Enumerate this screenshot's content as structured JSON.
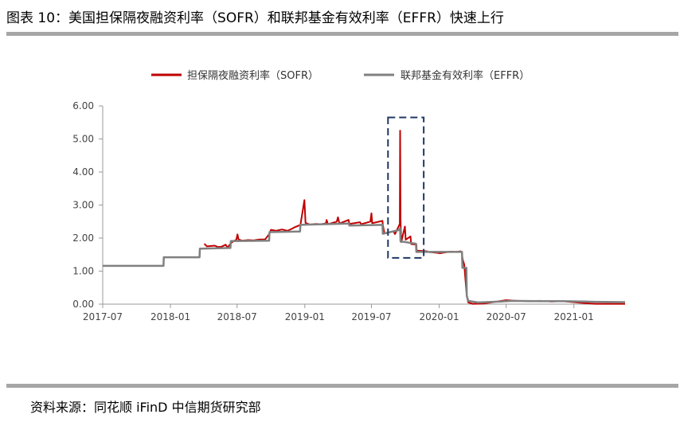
{
  "page": {
    "title": "图表 10：美国担保隔夜融资利率（SOFR）和联邦基金有效利率（EFFR）快速上行",
    "source": "资料来源：同花顺 iFinD 中信期货研究部"
  },
  "chart_data": {
    "type": "line",
    "title": "图表 10：美国担保隔夜融资利率（SOFR）和联邦基金有效利率（EFFR）快速上行",
    "xlabel": "",
    "ylabel": "",
    "x_domain": [
      "2017-07",
      "2021-05"
    ],
    "ylim": [
      0,
      6
    ],
    "y_ticks": [
      0,
      1,
      2,
      3,
      4,
      5,
      6
    ],
    "y_tick_labels": [
      "0.00",
      "1.00",
      "2.00",
      "3.00",
      "4.00",
      "5.00",
      "6.00"
    ],
    "x_ticks": [
      "2017-07",
      "2018-01",
      "2018-07",
      "2019-01",
      "2019-07",
      "2020-01",
      "2020-07",
      "2021-01"
    ],
    "grid": false,
    "legend": "top",
    "highlight_box": {
      "x_range": [
        "2019-08-15",
        "2019-11-20"
      ],
      "y_range": [
        1.4,
        5.65
      ],
      "style": "dashed",
      "color": "#1f3864"
    },
    "series": [
      {
        "name": "担保隔夜融资利率（SOFR）",
        "color": "#c00000",
        "points": [
          [
            "2018-04-03",
            1.83
          ],
          [
            "2018-04-10",
            1.75
          ],
          [
            "2018-04-20",
            1.76
          ],
          [
            "2018-05-01",
            1.77
          ],
          [
            "2018-05-10",
            1.73
          ],
          [
            "2018-05-20",
            1.74
          ],
          [
            "2018-05-31",
            1.8
          ],
          [
            "2018-06-05",
            1.71
          ],
          [
            "2018-06-14",
            1.84
          ],
          [
            "2018-06-20",
            1.9
          ],
          [
            "2018-06-29",
            1.95
          ],
          [
            "2018-07-02",
            2.11
          ],
          [
            "2018-07-05",
            1.96
          ],
          [
            "2018-07-15",
            1.92
          ],
          [
            "2018-07-31",
            1.94
          ],
          [
            "2018-08-15",
            1.93
          ],
          [
            "2018-08-31",
            1.96
          ],
          [
            "2018-09-15",
            1.96
          ],
          [
            "2018-09-27",
            2.13
          ],
          [
            "2018-10-01",
            2.25
          ],
          [
            "2018-10-15",
            2.22
          ],
          [
            "2018-10-31",
            2.26
          ],
          [
            "2018-11-15",
            2.22
          ],
          [
            "2018-11-30",
            2.3
          ],
          [
            "2018-12-03",
            2.32
          ],
          [
            "2018-12-20",
            2.4
          ],
          [
            "2018-12-31",
            3.15
          ],
          [
            "2019-01-03",
            2.46
          ],
          [
            "2019-01-15",
            2.41
          ],
          [
            "2019-01-31",
            2.43
          ],
          [
            "2019-02-15",
            2.42
          ],
          [
            "2019-02-28",
            2.45
          ],
          [
            "2019-03-01",
            2.55
          ],
          [
            "2019-03-05",
            2.42
          ],
          [
            "2019-03-29",
            2.5
          ],
          [
            "2019-04-01",
            2.63
          ],
          [
            "2019-04-05",
            2.44
          ],
          [
            "2019-04-30",
            2.55
          ],
          [
            "2019-05-02",
            2.43
          ],
          [
            "2019-05-31",
            2.48
          ],
          [
            "2019-06-03",
            2.42
          ],
          [
            "2019-06-28",
            2.5
          ],
          [
            "2019-07-01",
            2.75
          ],
          [
            "2019-07-03",
            2.45
          ],
          [
            "2019-07-31",
            2.52
          ],
          [
            "2019-08-01",
            2.4
          ],
          [
            "2019-08-05",
            2.14
          ],
          [
            "2019-08-30",
            2.2
          ],
          [
            "2019-09-03",
            2.12
          ],
          [
            "2019-09-16",
            2.43
          ],
          [
            "2019-09-17",
            5.25
          ],
          [
            "2019-09-18",
            2.55
          ],
          [
            "2019-09-20",
            1.88
          ],
          [
            "2019-09-30",
            2.35
          ],
          [
            "2019-10-02",
            1.95
          ],
          [
            "2019-10-15",
            2.05
          ],
          [
            "2019-10-17",
            1.82
          ],
          [
            "2019-10-31",
            1.8
          ],
          [
            "2019-11-01",
            1.62
          ],
          [
            "2019-11-29",
            1.6
          ],
          [
            "2019-12-02",
            1.58
          ],
          [
            "2019-12-31",
            1.55
          ],
          [
            "2020-01-02",
            1.54
          ],
          [
            "2020-01-31",
            1.59
          ],
          [
            "2020-02-15",
            1.58
          ],
          [
            "2020-02-28",
            1.6
          ],
          [
            "2020-03-02",
            1.58
          ],
          [
            "2020-03-05",
            1.35
          ],
          [
            "2020-03-09",
            1.2
          ],
          [
            "2020-03-16",
            0.25
          ],
          [
            "2020-03-20",
            0.05
          ],
          [
            "2020-04-01",
            0.01
          ],
          [
            "2020-05-01",
            0.02
          ],
          [
            "2020-06-01",
            0.07
          ],
          [
            "2020-07-01",
            0.12
          ],
          [
            "2020-08-01",
            0.1
          ],
          [
            "2020-09-01",
            0.09
          ],
          [
            "2020-10-01",
            0.1
          ],
          [
            "2020-11-01",
            0.08
          ],
          [
            "2020-12-01",
            0.09
          ],
          [
            "2021-01-01",
            0.06
          ],
          [
            "2021-02-01",
            0.03
          ],
          [
            "2021-03-01",
            0.01
          ],
          [
            "2021-04-01",
            0.01
          ],
          [
            "2021-05-20",
            0.01
          ]
        ]
      },
      {
        "name": "联邦基金有效利率（EFFR）",
        "color": "#808080",
        "points": [
          [
            "2017-07-01",
            1.16
          ],
          [
            "2017-12-13",
            1.16
          ],
          [
            "2017-12-14",
            1.42
          ],
          [
            "2018-03-21",
            1.42
          ],
          [
            "2018-03-22",
            1.68
          ],
          [
            "2018-06-13",
            1.7
          ],
          [
            "2018-06-14",
            1.91
          ],
          [
            "2018-09-26",
            1.92
          ],
          [
            "2018-09-27",
            2.18
          ],
          [
            "2018-12-19",
            2.2
          ],
          [
            "2018-12-20",
            2.4
          ],
          [
            "2019-05-01",
            2.44
          ],
          [
            "2019-05-02",
            2.38
          ],
          [
            "2019-07-31",
            2.4
          ],
          [
            "2019-08-01",
            2.13
          ],
          [
            "2019-09-16",
            2.25
          ],
          [
            "2019-09-17",
            2.3
          ],
          [
            "2019-09-18",
            1.9
          ],
          [
            "2019-10-30",
            1.83
          ],
          [
            "2019-10-31",
            1.58
          ],
          [
            "2020-03-03",
            1.58
          ],
          [
            "2020-03-04",
            1.1
          ],
          [
            "2020-03-15",
            1.1
          ],
          [
            "2020-03-16",
            0.25
          ],
          [
            "2020-03-20",
            0.1
          ],
          [
            "2020-04-15",
            0.05
          ],
          [
            "2020-06-15",
            0.08
          ],
          [
            "2020-07-15",
            0.1
          ],
          [
            "2020-10-01",
            0.09
          ],
          [
            "2020-12-01",
            0.09
          ],
          [
            "2021-02-01",
            0.08
          ],
          [
            "2021-03-01",
            0.07
          ],
          [
            "2021-05-20",
            0.06
          ]
        ]
      }
    ]
  }
}
